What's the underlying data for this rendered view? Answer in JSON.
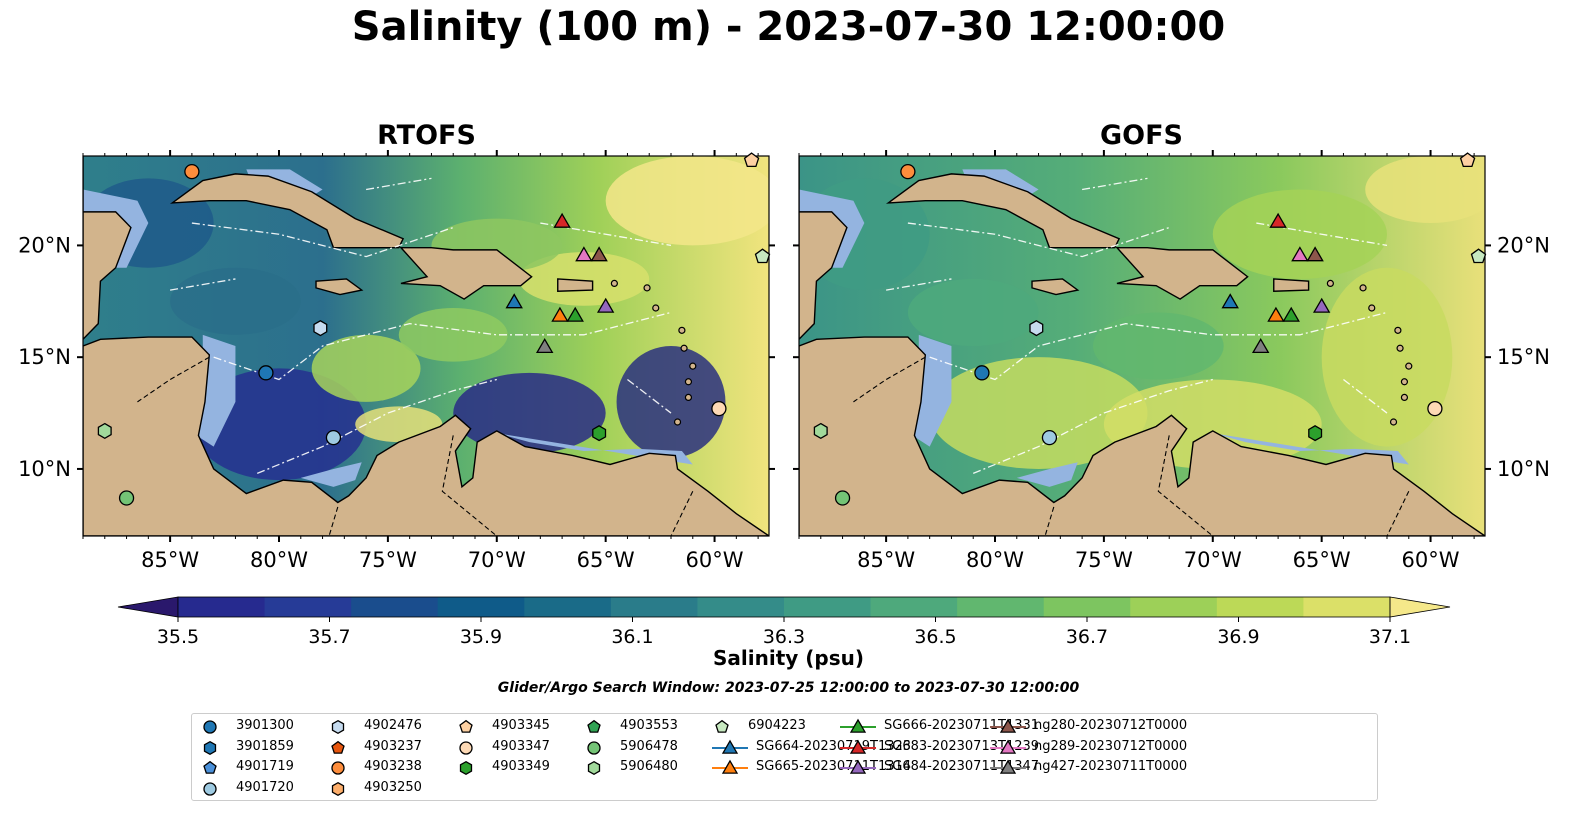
{
  "title": "Salinity (100 m) - 2023-07-30 12:00:00",
  "panels": [
    {
      "title": "RTOFS",
      "extent": {
        "lon": [
          -89,
          -57.5
        ],
        "lat": [
          7,
          24
        ]
      }
    },
    {
      "title": "GOFS",
      "extent": {
        "lon": [
          -89,
          -57.5
        ],
        "lat": [
          7,
          24
        ]
      }
    }
  ],
  "axes": {
    "lon_ticks": [
      "85°W",
      "80°W",
      "75°W",
      "70°W",
      "65°W",
      "60°W"
    ],
    "lat_ticks": [
      "20°N",
      "15°N",
      "10°N"
    ]
  },
  "colorbar": {
    "ticks": [
      "35.5",
      "35.7",
      "35.9",
      "36.1",
      "36.3",
      "36.5",
      "36.7",
      "36.9",
      "37.1"
    ],
    "label": "Salinity (psu)",
    "range": [
      35.4,
      37.2
    ],
    "colormap": "haline",
    "colors": [
      "#2a186c",
      "#262a8f",
      "#263b97",
      "#1a4d8d",
      "#0f5b89",
      "#1a6b88",
      "#2a7c8a",
      "#348c89",
      "#3f9b84",
      "#4ea97c",
      "#61b76f",
      "#7dc560",
      "#9dd058",
      "#bcd957",
      "#dbe068",
      "#f5e88a"
    ]
  },
  "search_window": "Glider/Argo Search Window: 2023-07-25 12:00:00 to 2023-07-30 12:00:00",
  "legend": [
    {
      "label": "3901300",
      "marker": "circle",
      "color": "#1f77b4"
    },
    {
      "label": "3901859",
      "marker": "hexagon",
      "color": "#1f77b4"
    },
    {
      "label": "4901719",
      "marker": "pentagon",
      "color": "#4a90d9"
    },
    {
      "label": "4901720",
      "marker": "circle",
      "color": "#9ecae1"
    },
    {
      "label": "4902476",
      "marker": "hexagon",
      "color": "#c6dbef"
    },
    {
      "label": "4903237",
      "marker": "pentagon",
      "color": "#e6550d"
    },
    {
      "label": "4903238",
      "marker": "circle",
      "color": "#fd8d3c"
    },
    {
      "label": "4903250",
      "marker": "hexagon",
      "color": "#fdae6b"
    },
    {
      "label": "4903345",
      "marker": "pentagon",
      "color": "#fdd0a2"
    },
    {
      "label": "4903347",
      "marker": "circle",
      "color": "#fdd9b5"
    },
    {
      "label": "4903349",
      "marker": "hexagon",
      "color": "#2ca02c"
    },
    {
      "label": "4903553",
      "marker": "pentagon",
      "color": "#31a354"
    },
    {
      "label": "5906478",
      "marker": "circle",
      "color": "#74c476"
    },
    {
      "label": "5906480",
      "marker": "hexagon",
      "color": "#a1d99b"
    },
    {
      "label": "6904223",
      "marker": "pentagon",
      "color": "#c7e9c0"
    },
    {
      "label": "SG664-20230719T1323",
      "marker": "triangle-line",
      "color": "#1f77b4"
    },
    {
      "label": "SG665-20230711T1314",
      "marker": "triangle-line",
      "color": "#ff7f0e"
    },
    {
      "label": "SG666-20230711T1331",
      "marker": "triangle-line",
      "color": "#2ca02c"
    },
    {
      "label": "SG683-20230713T1239",
      "marker": "triangle-line",
      "color": "#d62728"
    },
    {
      "label": "SG684-20230711T1347",
      "marker": "triangle-line",
      "color": "#9467bd"
    },
    {
      "label": "ng280-20230712T0000",
      "marker": "triangle-line",
      "color": "#8c564b"
    },
    {
      "label": "ng289-20230712T0000",
      "marker": "triangle-line",
      "color": "#e377c2"
    },
    {
      "label": "ng427-20230711T0000",
      "marker": "triangle-line",
      "color": "#7f7f7f"
    }
  ],
  "observations": [
    {
      "id": "4903238",
      "lon": -84,
      "lat": 23.3
    },
    {
      "id": "4903345",
      "lon": -58.3,
      "lat": 23.8
    },
    {
      "id": "6904223",
      "lon": -57.8,
      "lat": 19.5
    },
    {
      "id": "4902476",
      "lon": -78.1,
      "lat": 16.3
    },
    {
      "id": "3901300",
      "lon": -80.6,
      "lat": 14.3
    },
    {
      "id": "4901720",
      "lon": -77.5,
      "lat": 11.4
    },
    {
      "id": "5906480",
      "lon": -88,
      "lat": 11.7
    },
    {
      "id": "5906478",
      "lon": -87,
      "lat": 8.7
    },
    {
      "id": "4903349",
      "lon": -65.3,
      "lat": 11.6
    },
    {
      "id": "4903347",
      "lon": -59.8,
      "lat": 12.7
    },
    {
      "id": "SG683-20230713T1239",
      "lon": -67,
      "lat": 21.1
    },
    {
      "id": "ng289-20230712T0000",
      "lon": -66,
      "lat": 19.6
    },
    {
      "id": "ng280-20230712T0000",
      "lon": -65.3,
      "lat": 19.6
    },
    {
      "id": "SG664-20230719T1323",
      "lon": -69.2,
      "lat": 17.5
    },
    {
      "id": "SG665-20230711T1314",
      "lon": -67.1,
      "lat": 16.9
    },
    {
      "id": "SG666-20230711T1331",
      "lon": -66.4,
      "lat": 16.9
    },
    {
      "id": "SG684-20230711T1347",
      "lon": -65,
      "lat": 17.3
    },
    {
      "id": "ng427-20230711T0000",
      "lon": -67.8,
      "lat": 15.5
    }
  ]
}
